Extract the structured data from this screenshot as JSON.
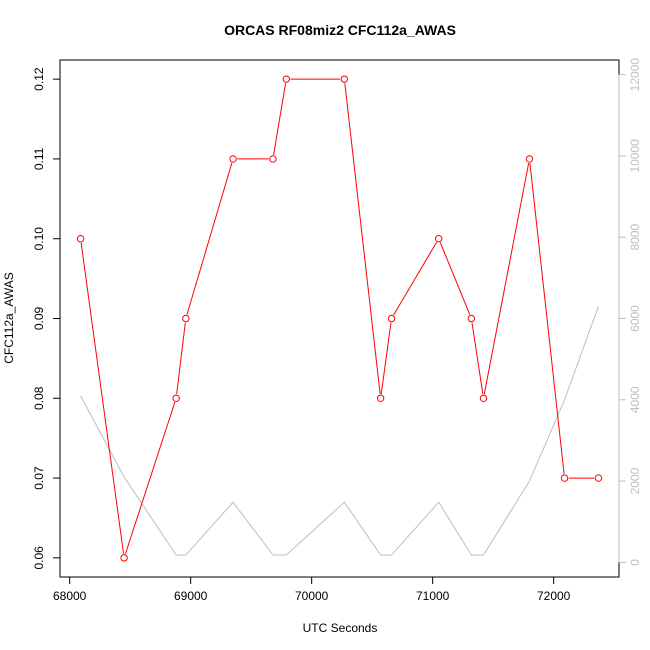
{
  "chart_data": {
    "type": "line",
    "title": "ORCAS RF08miz2 CFC112a_AWAS",
    "xlabel": "UTC Seconds",
    "ylabel": "CFC112a_AWAS",
    "xlim": [
      67920,
      72540
    ],
    "ylim": [
      0.0576,
      0.1224
    ],
    "y2lim": [
      -360,
      12360
    ],
    "x_ticks": [
      68000,
      69000,
      70000,
      71000,
      72000
    ],
    "y_ticks": [
      0.06,
      0.07,
      0.08,
      0.09,
      0.1,
      0.11,
      0.12
    ],
    "y2_ticks": [
      0,
      2000,
      4000,
      6000,
      8000,
      10000,
      12000
    ],
    "x_tick_labels": [
      "68000",
      "69000",
      "70000",
      "71000",
      "72000"
    ],
    "y_tick_labels": [
      "0.06",
      "0.07",
      "0.08",
      "0.09",
      "0.10",
      "0.11",
      "0.12"
    ],
    "y2_tick_labels": [
      "0",
      "2000",
      "4000",
      "6000",
      "8000",
      "10000",
      "12000"
    ],
    "grid": false,
    "colors": {
      "primary": "#ff0000",
      "secondary": "#bebebe",
      "axis": "#000000",
      "secondary_axis": "#bebebe"
    },
    "series": [
      {
        "axis": "left",
        "style": "line+markers",
        "x": [
          68090,
          68450,
          68880,
          68960,
          69350,
          69680,
          69790,
          70270,
          70570,
          70660,
          71050,
          71320,
          71420,
          71800,
          72090,
          72370
        ],
        "values": [
          0.1,
          0.06,
          0.08,
          0.09,
          0.11,
          0.11,
          0.12,
          0.12,
          0.08,
          0.09,
          0.1,
          0.09,
          0.08,
          0.11,
          0.07,
          0.07
        ]
      },
      {
        "axis": "right",
        "style": "line",
        "x": [
          68090,
          68450,
          68880,
          68960,
          69350,
          69680,
          69790,
          70270,
          70570,
          70660,
          71050,
          71320,
          71420,
          71800,
          72090,
          72370
        ],
        "values": [
          4100,
          2100,
          180,
          180,
          1480,
          180,
          180,
          1480,
          180,
          180,
          1480,
          180,
          180,
          2000,
          4000,
          6300
        ]
      }
    ]
  }
}
